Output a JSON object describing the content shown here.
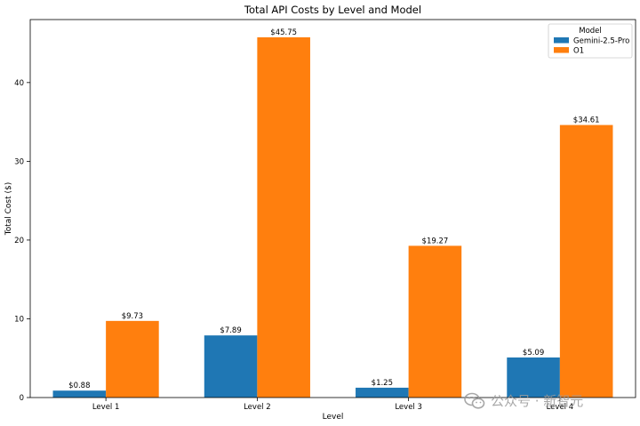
{
  "chart_data": {
    "type": "bar",
    "title": "Total API Costs by Level and Model",
    "xlabel": "Level",
    "ylabel": "Total Cost ($)",
    "categories": [
      "Level 1",
      "Level 2",
      "Level 3",
      "Level 4"
    ],
    "series": [
      {
        "name": "Gemini-2.5-Pro",
        "values": [
          0.88,
          7.89,
          1.25,
          5.09
        ],
        "labels": [
          "$0.88",
          "$7.89",
          "$1.25",
          "$5.09"
        ],
        "color": "#1f77b4"
      },
      {
        "name": "O1",
        "values": [
          9.73,
          45.75,
          19.27,
          34.61
        ],
        "labels": [
          "$9.73",
          "$45.75",
          "$19.27",
          "$34.61"
        ],
        "color": "#ff7f0e"
      }
    ],
    "ylim": [
      0,
      48
    ],
    "yticks": [
      0,
      10,
      20,
      30,
      40
    ],
    "legend": {
      "title": "Model",
      "placement": "top-right"
    },
    "grid": false
  },
  "watermark": {
    "text": "公众号 · 新智元",
    "icon": "wechat-icon"
  }
}
